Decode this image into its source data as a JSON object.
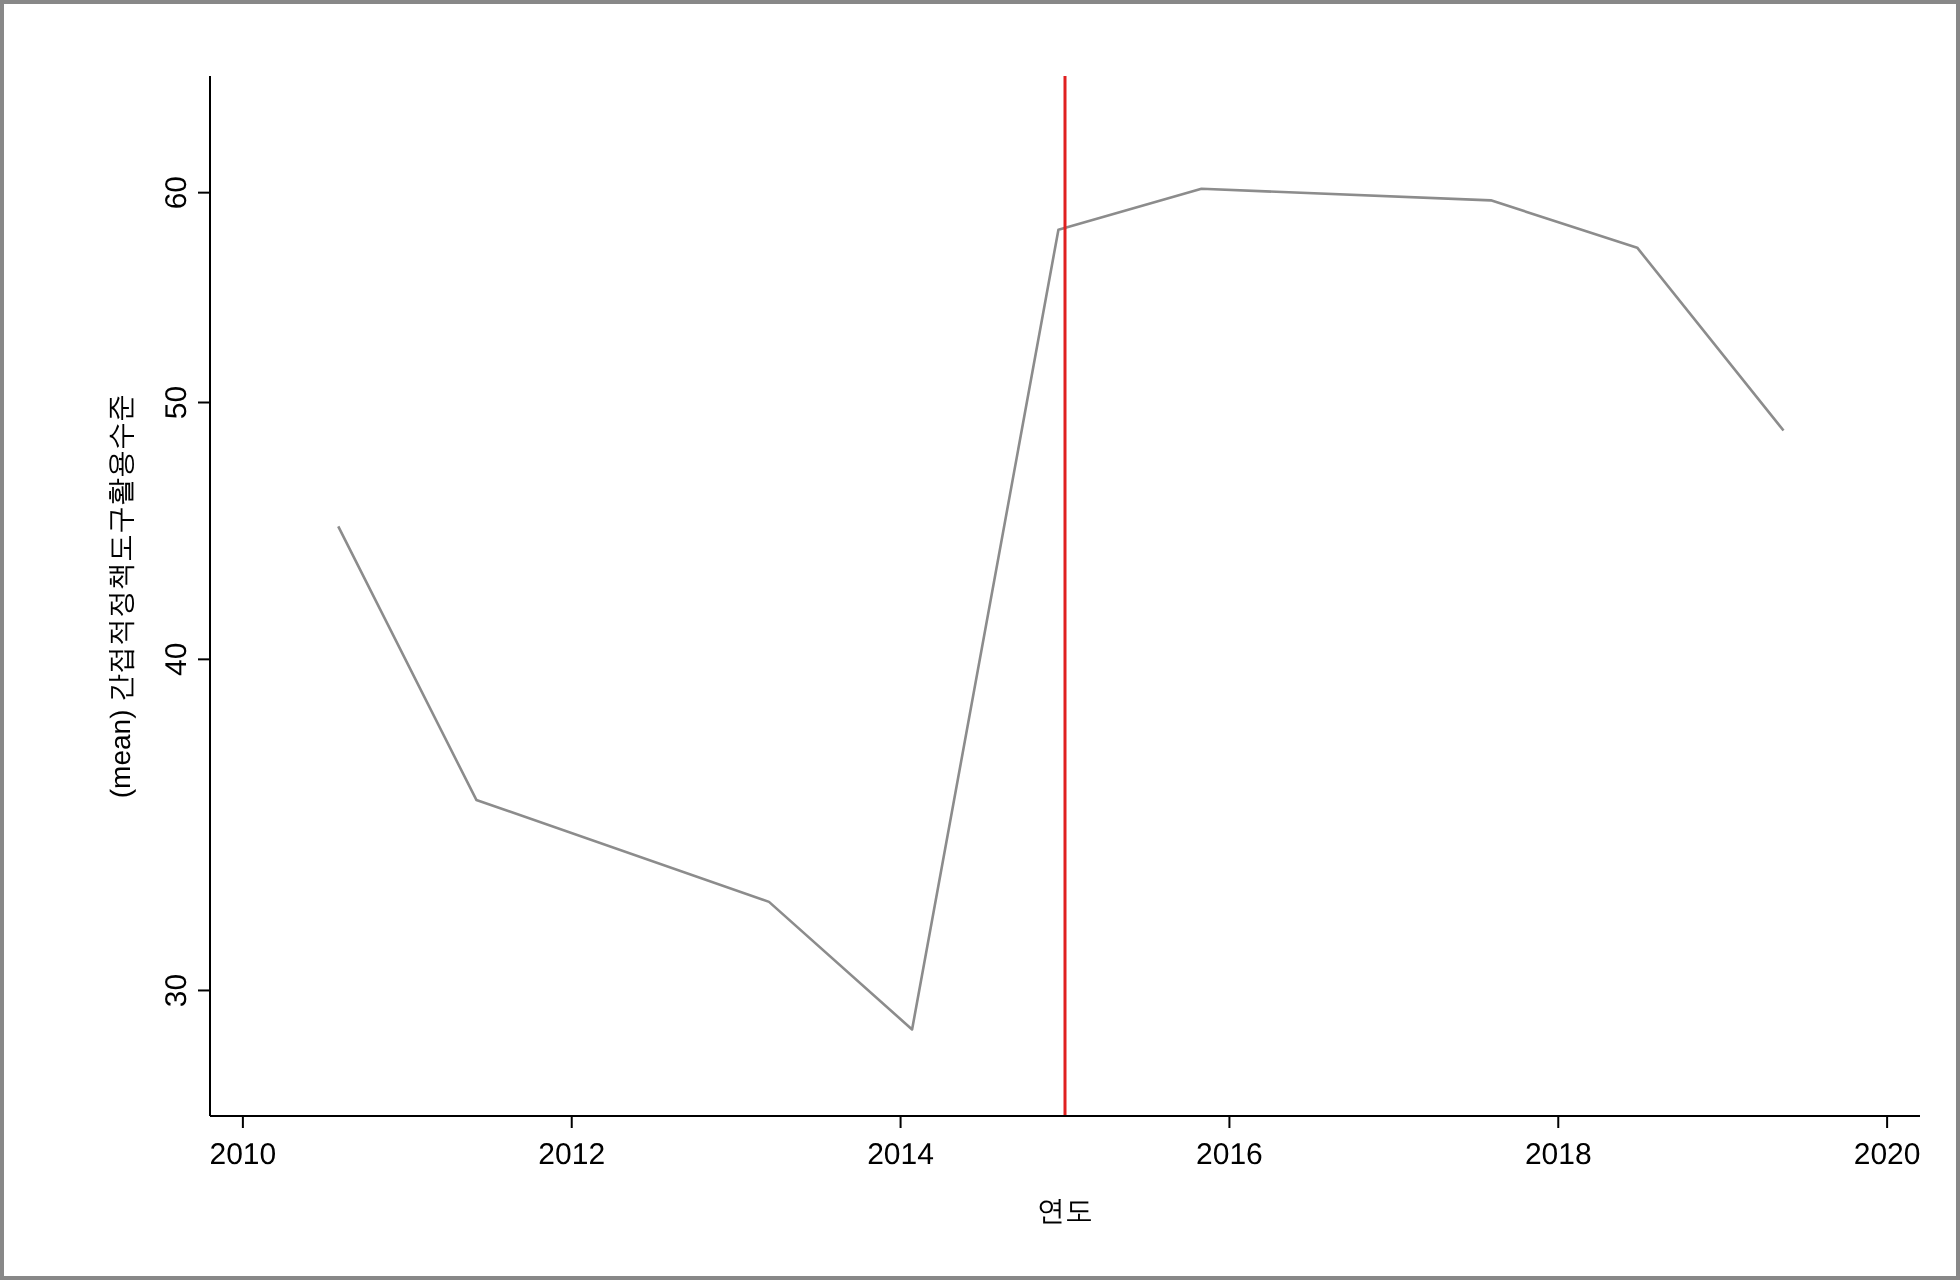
{
  "chart_data": {
    "type": "line",
    "xlabel": "연도",
    "ylabel": "(mean) 간접적정책도구활용수준",
    "x": [
      2010.58,
      2011.42,
      2013.2,
      2014.07,
      2014.96,
      2015.83,
      2017.59,
      2018.48,
      2019.37
    ],
    "series": [
      {
        "color": "#8c8c8c",
        "values": [
          44.9,
          35.4,
          32.4,
          29.0,
          58.1,
          60.2,
          59.6,
          57.2,
          48.8
        ]
      }
    ],
    "xlim": [
      2009.8,
      2020.2
    ],
    "xticks": [
      2010,
      2012,
      2014,
      2016,
      2018,
      2020
    ],
    "ylim": [
      26.9,
      66.4
    ],
    "yticks": [
      30,
      40,
      50,
      60
    ],
    "log": "y",
    "grid": false,
    "marker": "none",
    "line_style": "solid",
    "ref_lines": [
      {
        "axis": "x",
        "value": 2015,
        "color": "#e02020"
      }
    ]
  }
}
